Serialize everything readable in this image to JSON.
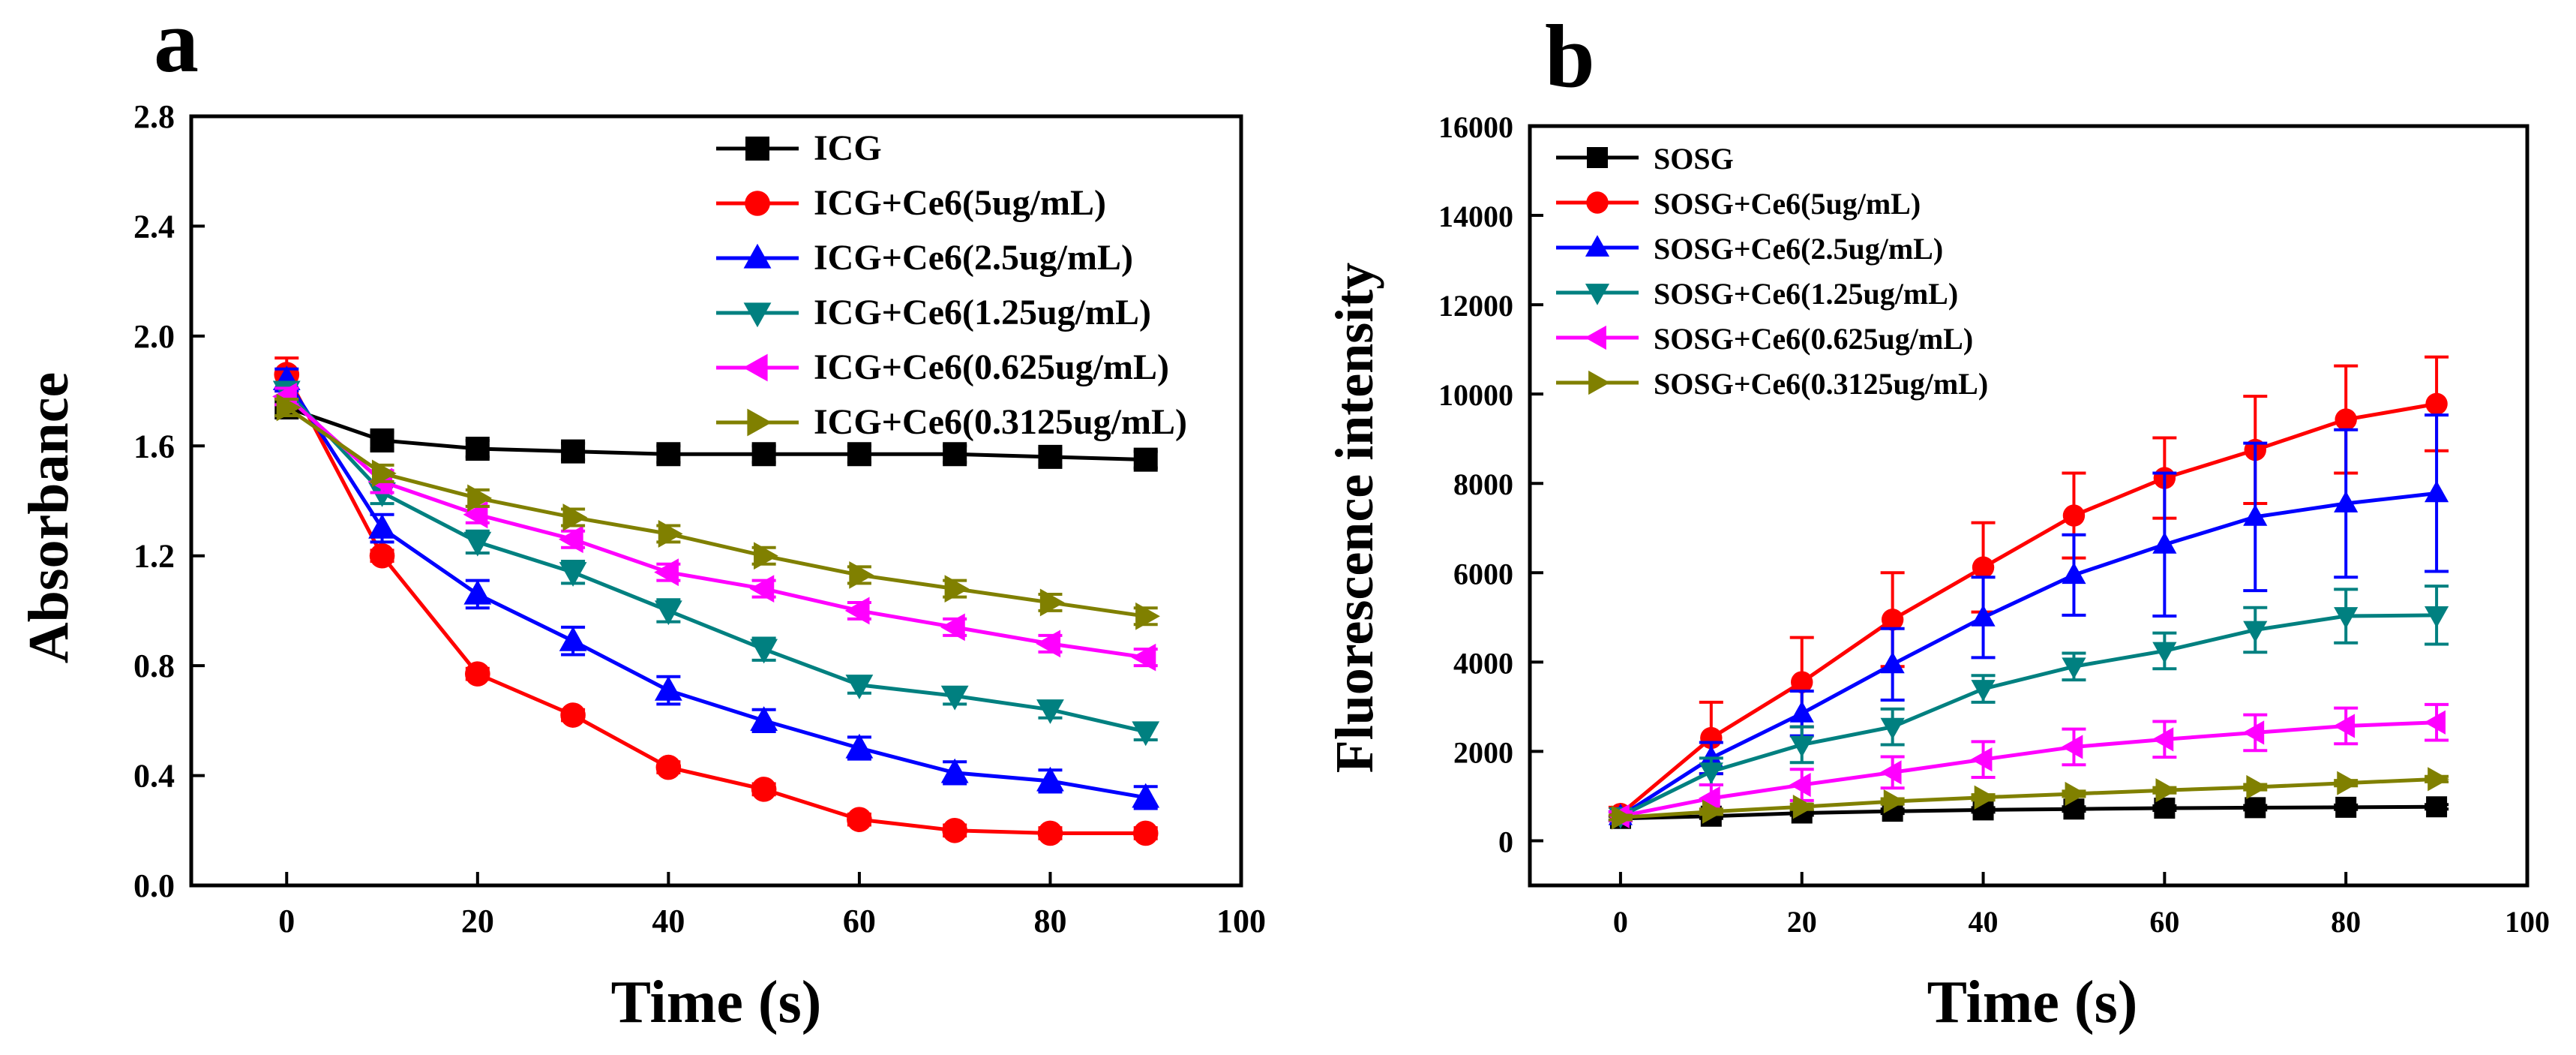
{
  "chart_data": [
    {
      "panel_label": "a",
      "type": "line",
      "xlabel": "Time (s)",
      "ylabel": "Absorbance",
      "xlim": [
        -10,
        100
      ],
      "ylim": [
        0,
        2.8
      ],
      "xticks": [
        0,
        20,
        40,
        60,
        80,
        100
      ],
      "yticks": [
        0.0,
        0.4,
        0.8,
        1.2,
        1.6,
        2.0,
        2.4,
        2.8
      ],
      "ytick_labels": [
        "0.0",
        "0.4",
        "0.8",
        "1.2",
        "1.6",
        "2.0",
        "2.4",
        "2.8"
      ],
      "x": [
        0,
        10,
        20,
        30,
        40,
        50,
        60,
        70,
        80,
        90
      ],
      "legend_position": "top-right",
      "series": [
        {
          "name": "ICG",
          "color": "#000000",
          "marker": "square",
          "values": [
            1.74,
            1.62,
            1.59,
            1.58,
            1.57,
            1.57,
            1.57,
            1.57,
            1.56,
            1.55
          ],
          "errors": [
            0.03,
            0.03,
            0.03,
            0.03,
            0.03,
            0.03,
            0.03,
            0.03,
            0.03,
            0.03
          ]
        },
        {
          "name": "ICG+Ce6(5ug/mL)",
          "color": "#ff0000",
          "marker": "circle",
          "values": [
            1.86,
            1.2,
            0.77,
            0.62,
            0.43,
            0.35,
            0.24,
            0.2,
            0.19,
            0.19
          ],
          "errors": [
            0.06,
            0.02,
            0.02,
            0.02,
            0.02,
            0.02,
            0.02,
            0.02,
            0.02,
            0.02
          ]
        },
        {
          "name": "ICG+Ce6(2.5ug/mL)",
          "color": "#0000ff",
          "marker": "triangle-up",
          "values": [
            1.84,
            1.3,
            1.06,
            0.89,
            0.71,
            0.6,
            0.5,
            0.41,
            0.38,
            0.32
          ],
          "errors": [
            0.04,
            0.05,
            0.05,
            0.05,
            0.05,
            0.04,
            0.04,
            0.04,
            0.04,
            0.04
          ]
        },
        {
          "name": "ICG+Ce6(1.25ug/mL)",
          "color": "#008080",
          "marker": "triangle-down",
          "values": [
            1.8,
            1.43,
            1.25,
            1.14,
            1.0,
            0.86,
            0.73,
            0.69,
            0.64,
            0.56
          ],
          "errors": [
            0.03,
            0.04,
            0.04,
            0.04,
            0.04,
            0.04,
            0.03,
            0.03,
            0.03,
            0.03
          ]
        },
        {
          "name": "ICG+Ce6(0.625ug/mL)",
          "color": "#ff00ff",
          "marker": "triangle-left",
          "values": [
            1.78,
            1.47,
            1.35,
            1.26,
            1.14,
            1.08,
            1.0,
            0.94,
            0.88,
            0.83
          ],
          "errors": [
            0.03,
            0.04,
            0.03,
            0.03,
            0.03,
            0.03,
            0.03,
            0.03,
            0.03,
            0.03
          ]
        },
        {
          "name": "ICG+Ce6(0.3125ug/mL)",
          "color": "#808000",
          "marker": "triangle-right",
          "values": [
            1.74,
            1.5,
            1.41,
            1.34,
            1.28,
            1.2,
            1.13,
            1.08,
            1.03,
            0.98
          ],
          "errors": [
            0.03,
            0.03,
            0.03,
            0.03,
            0.03,
            0.03,
            0.03,
            0.03,
            0.03,
            0.03
          ]
        }
      ]
    },
    {
      "panel_label": "b",
      "type": "line",
      "xlabel": "Time (s)",
      "ylabel": "Fluorescence intensity",
      "xlim": [
        -10,
        100
      ],
      "ylim": [
        -1000,
        16000
      ],
      "xticks": [
        0,
        20,
        40,
        60,
        80,
        100
      ],
      "yticks": [
        0,
        2000,
        4000,
        6000,
        8000,
        10000,
        12000,
        14000,
        16000
      ],
      "ytick_labels": [
        "0",
        "2000",
        "4000",
        "6000",
        "8000",
        "10000",
        "12000",
        "14000",
        "16000"
      ],
      "x": [
        0,
        10,
        20,
        30,
        40,
        50,
        60,
        70,
        80,
        90
      ],
      "legend_position": "top-left",
      "series": [
        {
          "name": "SOSG",
          "color": "#000000",
          "marker": "square",
          "values": [
            500,
            550,
            620,
            660,
            690,
            710,
            730,
            740,
            750,
            760
          ],
          "errors": [
            50,
            50,
            50,
            50,
            50,
            50,
            50,
            50,
            50,
            50
          ]
        },
        {
          "name": "SOSG+Ce6(5ug/mL)",
          "color": "#ff0000",
          "marker": "circle",
          "values": [
            600,
            2300,
            3550,
            4950,
            6120,
            7280,
            8120,
            8750,
            9430,
            9780
          ],
          "errors": [
            150,
            800,
            1000,
            1050,
            1000,
            950,
            900,
            1200,
            1200,
            1050
          ]
        },
        {
          "name": "SOSG+Ce6(2.5ug/mL)",
          "color": "#0000ff",
          "marker": "triangle-up",
          "values": [
            550,
            1850,
            2850,
            3950,
            5000,
            5950,
            6630,
            7250,
            7550,
            7780
          ],
          "errors": [
            100,
            350,
            500,
            800,
            900,
            900,
            1600,
            1650,
            1650,
            1750
          ]
        },
        {
          "name": "SOSG+Ce6(1.25ug/mL)",
          "color": "#008080",
          "marker": "triangle-down",
          "values": [
            550,
            1550,
            2150,
            2550,
            3400,
            3900,
            4250,
            4720,
            5030,
            5050
          ],
          "errors": [
            100,
            300,
            400,
            400,
            300,
            300,
            400,
            500,
            600,
            650
          ]
        },
        {
          "name": "SOSG+Ce6(0.625ug/mL)",
          "color": "#ff00ff",
          "marker": "triangle-left",
          "values": [
            550,
            950,
            1250,
            1530,
            1820,
            2100,
            2270,
            2420,
            2570,
            2650
          ],
          "errors": [
            100,
            300,
            350,
            350,
            400,
            400,
            400,
            400,
            400,
            400
          ]
        },
        {
          "name": "SOSG+Ce6(0.3125ug/mL)",
          "color": "#808000",
          "marker": "triangle-right",
          "values": [
            520,
            650,
            760,
            880,
            970,
            1050,
            1130,
            1200,
            1290,
            1380
          ],
          "errors": [
            50,
            60,
            60,
            60,
            60,
            60,
            60,
            60,
            60,
            60
          ]
        }
      ]
    }
  ]
}
